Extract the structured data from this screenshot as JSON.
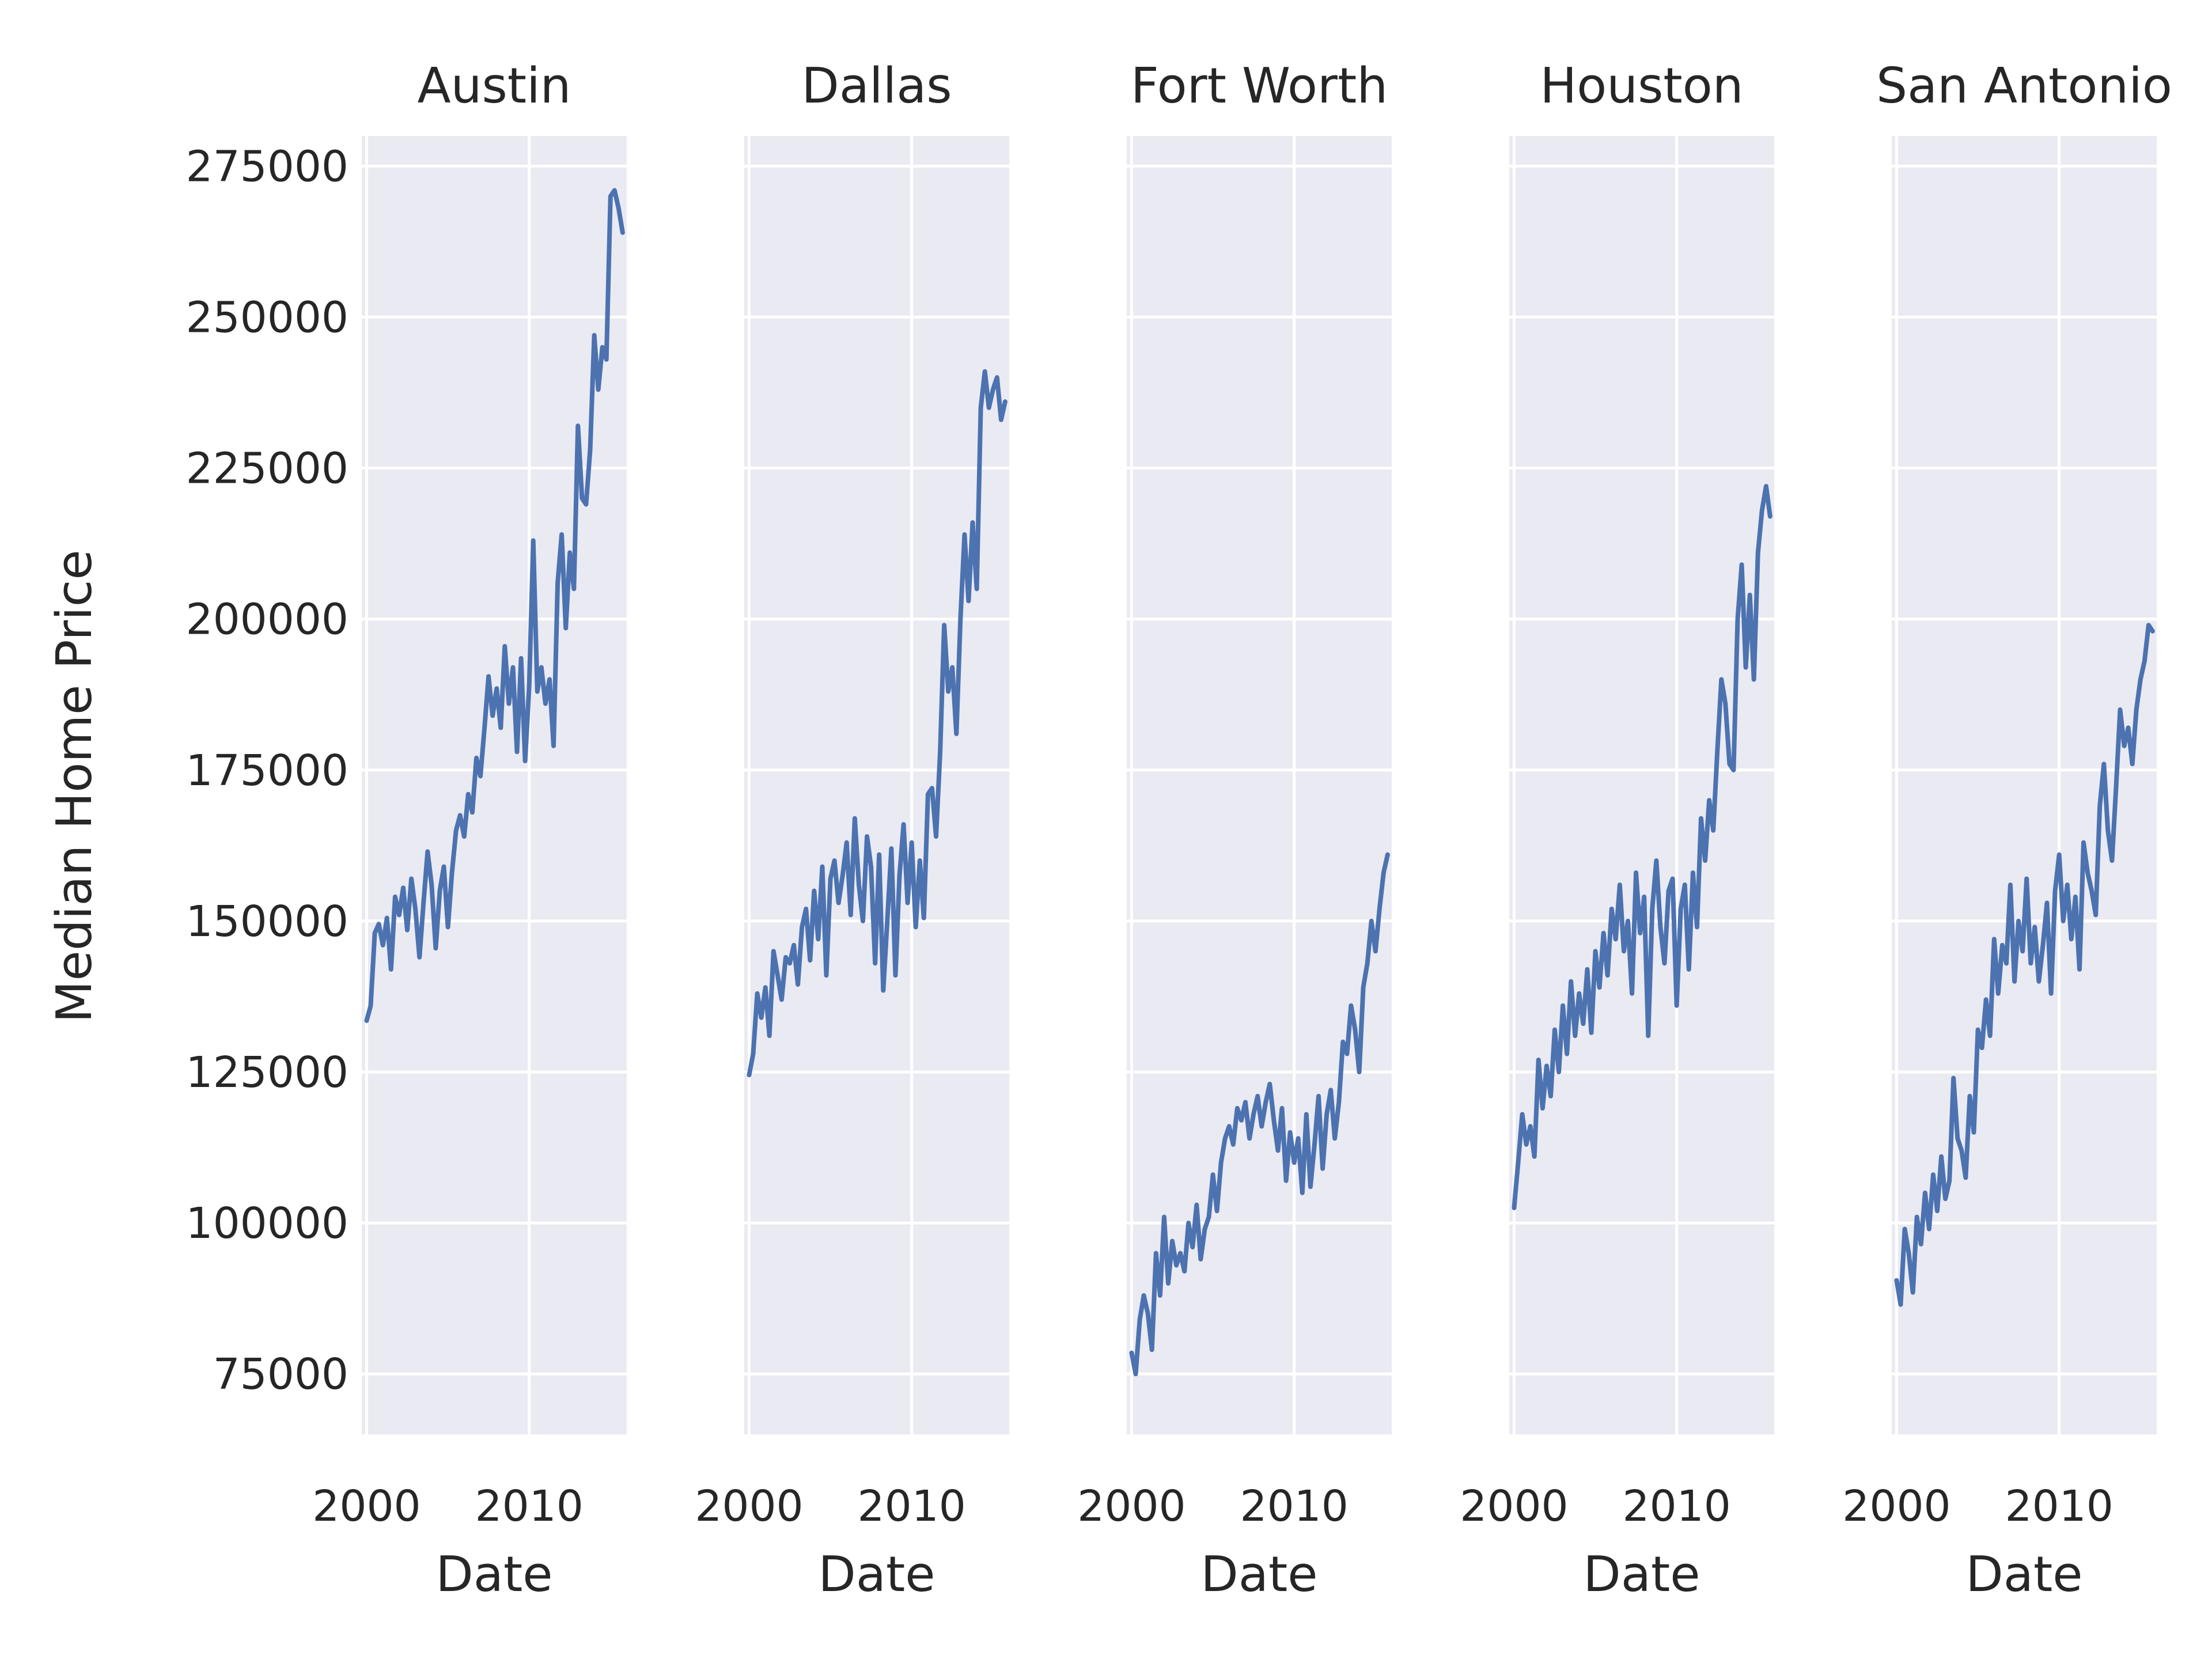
{
  "chart_data": {
    "type": "line",
    "ylabel": "Median Home Price",
    "xlabel": "Date",
    "ylim": [
      65000,
      280000
    ],
    "xlim": [
      1999.7,
      2016.0
    ],
    "yticks": [
      75000,
      100000,
      125000,
      150000,
      175000,
      200000,
      225000,
      250000,
      275000
    ],
    "xticks": [
      2000,
      2010
    ],
    "grid": true,
    "line_color": "#4C72B0",
    "background_color": "#EAEAF2",
    "panels": [
      {
        "title": "Austin",
        "x": [
          2000.0,
          2000.25,
          2000.5,
          2000.75,
          2001.0,
          2001.25,
          2001.5,
          2001.75,
          2002.0,
          2002.25,
          2002.5,
          2002.75,
          2003.0,
          2003.25,
          2003.5,
          2003.75,
          2004.0,
          2004.25,
          2004.5,
          2004.75,
          2005.0,
          2005.25,
          2005.5,
          2005.75,
          2006.0,
          2006.25,
          2006.5,
          2006.75,
          2007.0,
          2007.25,
          2007.5,
          2007.75,
          2008.0,
          2008.25,
          2008.5,
          2008.75,
          2009.0,
          2009.25,
          2009.5,
          2009.75,
          2010.0,
          2010.25,
          2010.5,
          2010.75,
          2011.0,
          2011.25,
          2011.5,
          2011.75,
          2012.0,
          2012.25,
          2012.5,
          2012.75,
          2013.0,
          2013.25,
          2013.5,
          2013.75,
          2014.0,
          2014.25,
          2014.5,
          2014.75,
          2015.0,
          2015.25,
          2015.5,
          2015.75
        ],
        "y": [
          133500,
          136000,
          148000,
          149500,
          146000,
          150500,
          142000,
          154000,
          151000,
          155500,
          148500,
          157000,
          152000,
          144000,
          153000,
          161500,
          156000,
          145500,
          155000,
          159000,
          149000,
          158000,
          165000,
          167500,
          164000,
          171000,
          168000,
          177000,
          174000,
          182000,
          190500,
          184000,
          188500,
          182000,
          195500,
          186000,
          192000,
          178000,
          193500,
          176500,
          189000,
          213000,
          188000,
          192000,
          186000,
          190000,
          179000,
          206000,
          214000,
          198500,
          211000,
          205000,
          232000,
          220000,
          219000,
          228000,
          247000,
          238000,
          245000,
          243000,
          270000,
          271000,
          268000,
          264000
        ]
      },
      {
        "title": "Dallas",
        "x": [
          2000.0,
          2000.25,
          2000.5,
          2000.75,
          2001.0,
          2001.25,
          2001.5,
          2001.75,
          2002.0,
          2002.25,
          2002.5,
          2002.75,
          2003.0,
          2003.25,
          2003.5,
          2003.75,
          2004.0,
          2004.25,
          2004.5,
          2004.75,
          2005.0,
          2005.25,
          2005.5,
          2005.75,
          2006.0,
          2006.25,
          2006.5,
          2006.75,
          2007.0,
          2007.25,
          2007.5,
          2007.75,
          2008.0,
          2008.25,
          2008.5,
          2008.75,
          2009.0,
          2009.25,
          2009.5,
          2009.75,
          2010.0,
          2010.25,
          2010.5,
          2010.75,
          2011.0,
          2011.25,
          2011.5,
          2011.75,
          2012.0,
          2012.25,
          2012.5,
          2012.75,
          2013.0,
          2013.25,
          2013.5,
          2013.75,
          2014.0,
          2014.25,
          2014.5,
          2014.75,
          2015.0,
          2015.25,
          2015.5,
          2015.75
        ],
        "y": [
          124500,
          128000,
          138000,
          134000,
          139000,
          131000,
          145000,
          141000,
          137000,
          144000,
          143000,
          146000,
          139500,
          149000,
          152000,
          143500,
          155000,
          147000,
          159000,
          141000,
          157000,
          160000,
          153000,
          157500,
          163000,
          151000,
          167000,
          156000,
          150000,
          164000,
          159000,
          143000,
          161000,
          138500,
          150000,
          162000,
          141000,
          157500,
          166000,
          153000,
          163000,
          149000,
          160000,
          150500,
          171000,
          172000,
          164000,
          178000,
          199000,
          188000,
          192000,
          181000,
          200000,
          214000,
          203000,
          216000,
          205000,
          235000,
          241000,
          235000,
          238000,
          240000,
          233000,
          236000
        ]
      },
      {
        "title": "Fort Worth",
        "x": [
          2000.0,
          2000.25,
          2000.5,
          2000.75,
          2001.0,
          2001.25,
          2001.5,
          2001.75,
          2002.0,
          2002.25,
          2002.5,
          2002.75,
          2003.0,
          2003.25,
          2003.5,
          2003.75,
          2004.0,
          2004.25,
          2004.5,
          2004.75,
          2005.0,
          2005.25,
          2005.5,
          2005.75,
          2006.0,
          2006.25,
          2006.5,
          2006.75,
          2007.0,
          2007.25,
          2007.5,
          2007.75,
          2008.0,
          2008.25,
          2008.5,
          2008.75,
          2009.0,
          2009.25,
          2009.5,
          2009.75,
          2010.0,
          2010.25,
          2010.5,
          2010.75,
          2011.0,
          2011.25,
          2011.5,
          2011.75,
          2012.0,
          2012.25,
          2012.5,
          2012.75,
          2013.0,
          2013.25,
          2013.5,
          2013.75,
          2014.0,
          2014.25,
          2014.5,
          2014.75,
          2015.0,
          2015.25,
          2015.5,
          2015.75
        ],
        "y": [
          78500,
          75000,
          84000,
          88000,
          85000,
          79000,
          95000,
          88000,
          101000,
          90000,
          97000,
          93000,
          95000,
          92000,
          100000,
          96000,
          103000,
          94000,
          99000,
          101000,
          108000,
          102000,
          110000,
          114000,
          116000,
          113000,
          119000,
          117000,
          120000,
          114000,
          118000,
          121000,
          116000,
          120000,
          123000,
          117000,
          112000,
          119000,
          107000,
          115000,
          110000,
          114000,
          105000,
          118000,
          106000,
          113000,
          121000,
          109000,
          118000,
          122000,
          114000,
          120000,
          130000,
          128000,
          136000,
          132000,
          125000,
          139000,
          143000,
          150000,
          145000,
          152000,
          158000,
          161000
        ]
      },
      {
        "title": "Houston",
        "x": [
          2000.0,
          2000.25,
          2000.5,
          2000.75,
          2001.0,
          2001.25,
          2001.5,
          2001.75,
          2002.0,
          2002.25,
          2002.5,
          2002.75,
          2003.0,
          2003.25,
          2003.5,
          2003.75,
          2004.0,
          2004.25,
          2004.5,
          2004.75,
          2005.0,
          2005.25,
          2005.5,
          2005.75,
          2006.0,
          2006.25,
          2006.5,
          2006.75,
          2007.0,
          2007.25,
          2007.5,
          2007.75,
          2008.0,
          2008.25,
          2008.5,
          2008.75,
          2009.0,
          2009.25,
          2009.5,
          2009.75,
          2010.0,
          2010.25,
          2010.5,
          2010.75,
          2011.0,
          2011.25,
          2011.5,
          2011.75,
          2012.0,
          2012.25,
          2012.5,
          2012.75,
          2013.0,
          2013.25,
          2013.5,
          2013.75,
          2014.0,
          2014.25,
          2014.5,
          2014.75,
          2015.0,
          2015.25,
          2015.5,
          2015.75
        ],
        "y": [
          102500,
          110000,
          118000,
          113000,
          116000,
          111000,
          127000,
          119000,
          126000,
          121000,
          132000,
          125000,
          136000,
          128000,
          140000,
          131000,
          138000,
          133000,
          142000,
          131500,
          145000,
          139000,
          148000,
          141000,
          152000,
          147000,
          156000,
          145000,
          150000,
          138000,
          158000,
          148000,
          154000,
          131000,
          152000,
          160000,
          149000,
          143000,
          155000,
          157000,
          136000,
          152000,
          156000,
          142000,
          158000,
          149000,
          167000,
          160000,
          170000,
          165000,
          178000,
          190000,
          186000,
          176000,
          175000,
          200000,
          209000,
          192000,
          204000,
          190000,
          211000,
          218000,
          222000,
          217000
        ]
      },
      {
        "title": "San Antonio",
        "x": [
          2000.0,
          2000.25,
          2000.5,
          2000.75,
          2001.0,
          2001.25,
          2001.5,
          2001.75,
          2002.0,
          2002.25,
          2002.5,
          2002.75,
          2003.0,
          2003.25,
          2003.5,
          2003.75,
          2004.0,
          2004.25,
          2004.5,
          2004.75,
          2005.0,
          2005.25,
          2005.5,
          2005.75,
          2006.0,
          2006.25,
          2006.5,
          2006.75,
          2007.0,
          2007.25,
          2007.5,
          2007.75,
          2008.0,
          2008.25,
          2008.5,
          2008.75,
          2009.0,
          2009.25,
          2009.5,
          2009.75,
          2010.0,
          2010.25,
          2010.5,
          2010.75,
          2011.0,
          2011.25,
          2011.5,
          2011.75,
          2012.0,
          2012.25,
          2012.5,
          2012.75,
          2013.0,
          2013.25,
          2013.5,
          2013.75,
          2014.0,
          2014.25,
          2014.5,
          2014.75,
          2015.0,
          2015.25,
          2015.5,
          2015.75
        ],
        "y": [
          90500,
          86500,
          99000,
          95000,
          88500,
          101000,
          96500,
          105000,
          99000,
          108000,
          102000,
          111000,
          104000,
          107000,
          124000,
          114000,
          112000,
          107500,
          121000,
          115000,
          132000,
          129000,
          137000,
          131000,
          147000,
          138000,
          146000,
          143000,
          156000,
          140000,
          150000,
          145000,
          157000,
          143000,
          149000,
          140000,
          146000,
          153000,
          138000,
          155000,
          161000,
          150000,
          156000,
          147000,
          154000,
          142000,
          163000,
          158000,
          155000,
          151000,
          169000,
          176000,
          165000,
          160000,
          172000,
          185000,
          179000,
          182000,
          176000,
          185000,
          190000,
          193000,
          199000,
          198000
        ]
      }
    ]
  }
}
